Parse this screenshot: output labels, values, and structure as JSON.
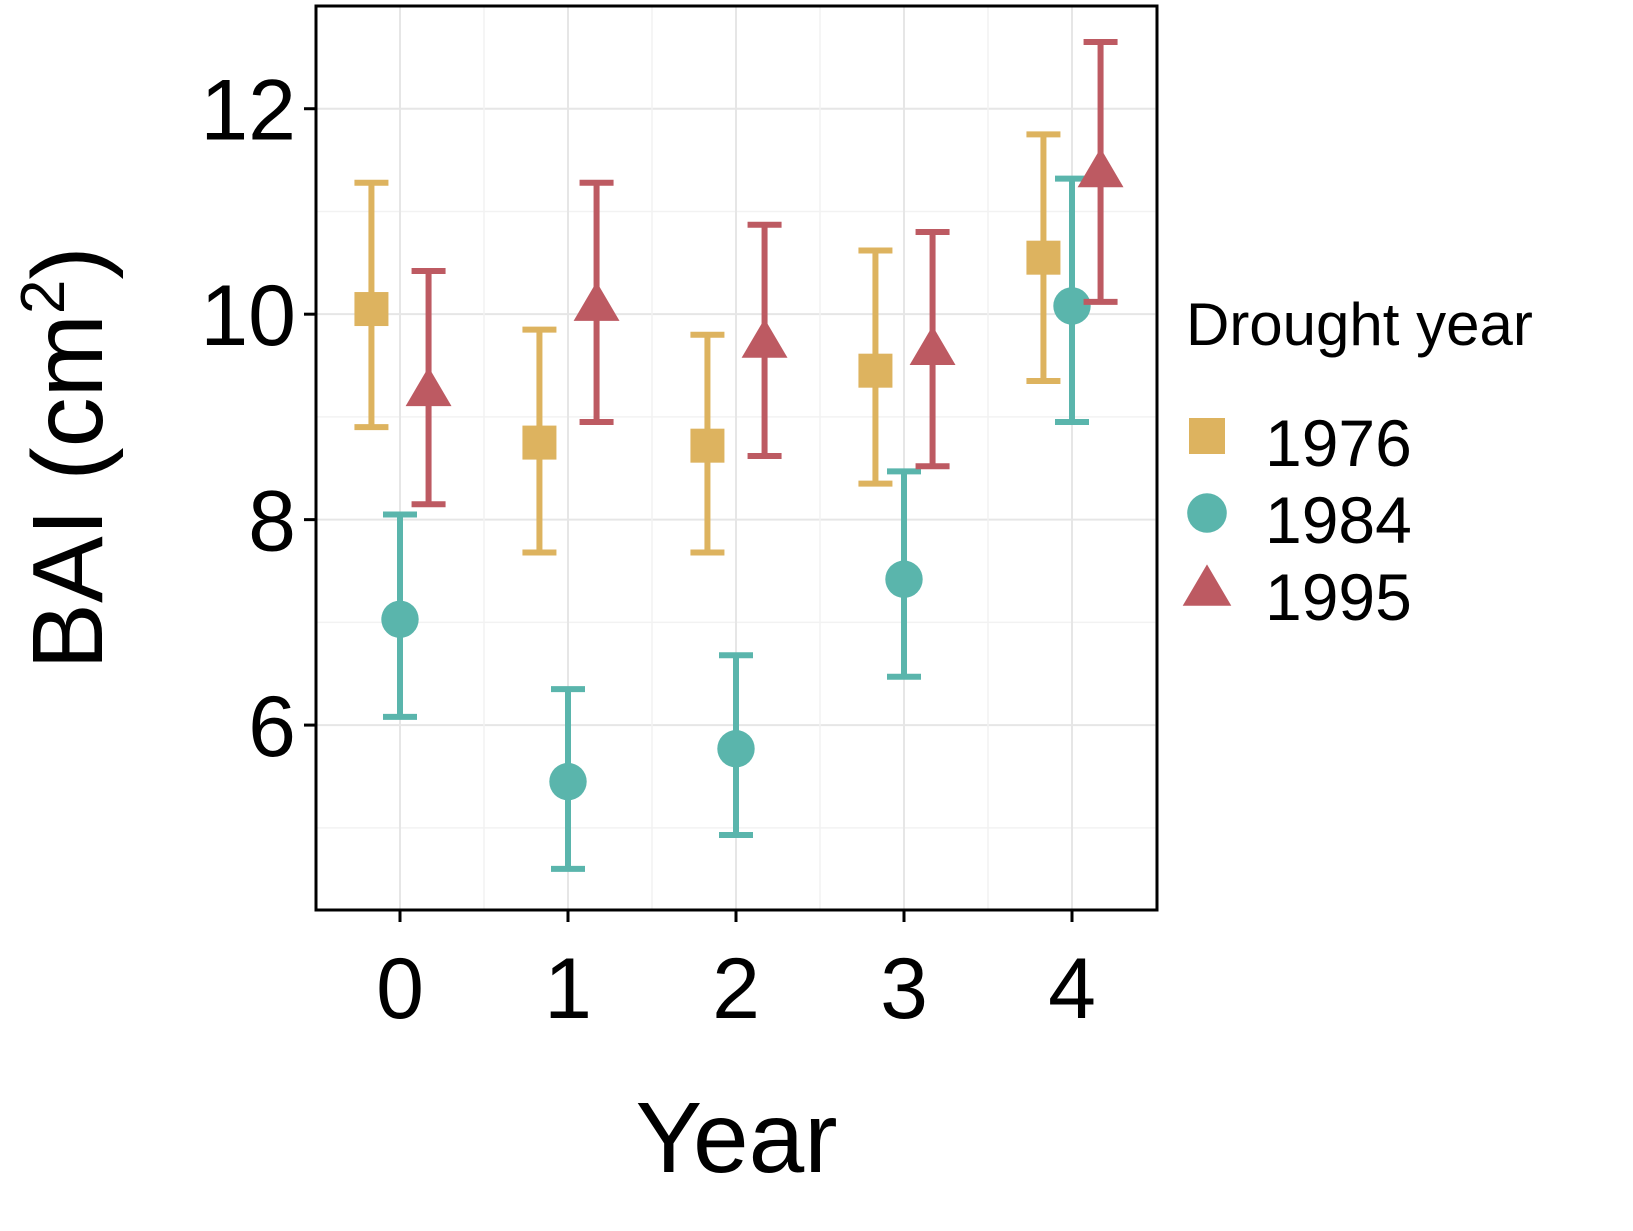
{
  "chart_data": {
    "type": "scatter",
    "xlabel": "Year",
    "ylabel": "BAI (cm²)",
    "ylabel_parts": {
      "main": "BAI (cm",
      "sup": "2",
      "end": ")"
    },
    "x_ticks": [
      "0",
      "1",
      "2",
      "3",
      "4"
    ],
    "y_ticks": [
      "6",
      "8",
      "10",
      "12"
    ],
    "ylim": [
      4.2,
      13.0
    ],
    "xlim": [
      -0.5,
      4.5
    ],
    "grid": true,
    "legend": {
      "title": "Drought year",
      "placement": "right"
    },
    "series": [
      {
        "name": "1976",
        "color": "#DDB35F",
        "marker": "square",
        "x": [
          0,
          1,
          2,
          3,
          4
        ],
        "y": [
          10.05,
          8.75,
          8.72,
          9.45,
          10.55
        ],
        "lower": [
          8.9,
          7.68,
          7.68,
          8.35,
          9.35
        ],
        "upper": [
          11.28,
          9.85,
          9.8,
          10.62,
          11.75
        ]
      },
      {
        "name": "1984",
        "color": "#5AB5AC",
        "marker": "circle",
        "x": [
          0,
          1,
          2,
          3,
          4
        ],
        "y": [
          7.03,
          5.45,
          5.77,
          7.42,
          10.08
        ],
        "lower": [
          6.08,
          4.6,
          4.93,
          6.47,
          8.95
        ],
        "upper": [
          8.05,
          6.35,
          6.68,
          8.47,
          11.32
        ]
      },
      {
        "name": "1995",
        "color": "#BD5A62",
        "marker": "triangle",
        "x": [
          0,
          1,
          2,
          3,
          4
        ],
        "y": [
          9.25,
          10.08,
          9.72,
          9.65,
          11.38
        ],
        "lower": [
          8.15,
          8.95,
          8.62,
          8.52,
          10.12
        ],
        "upper": [
          10.42,
          11.28,
          10.87,
          10.8,
          12.65
        ]
      }
    ]
  }
}
